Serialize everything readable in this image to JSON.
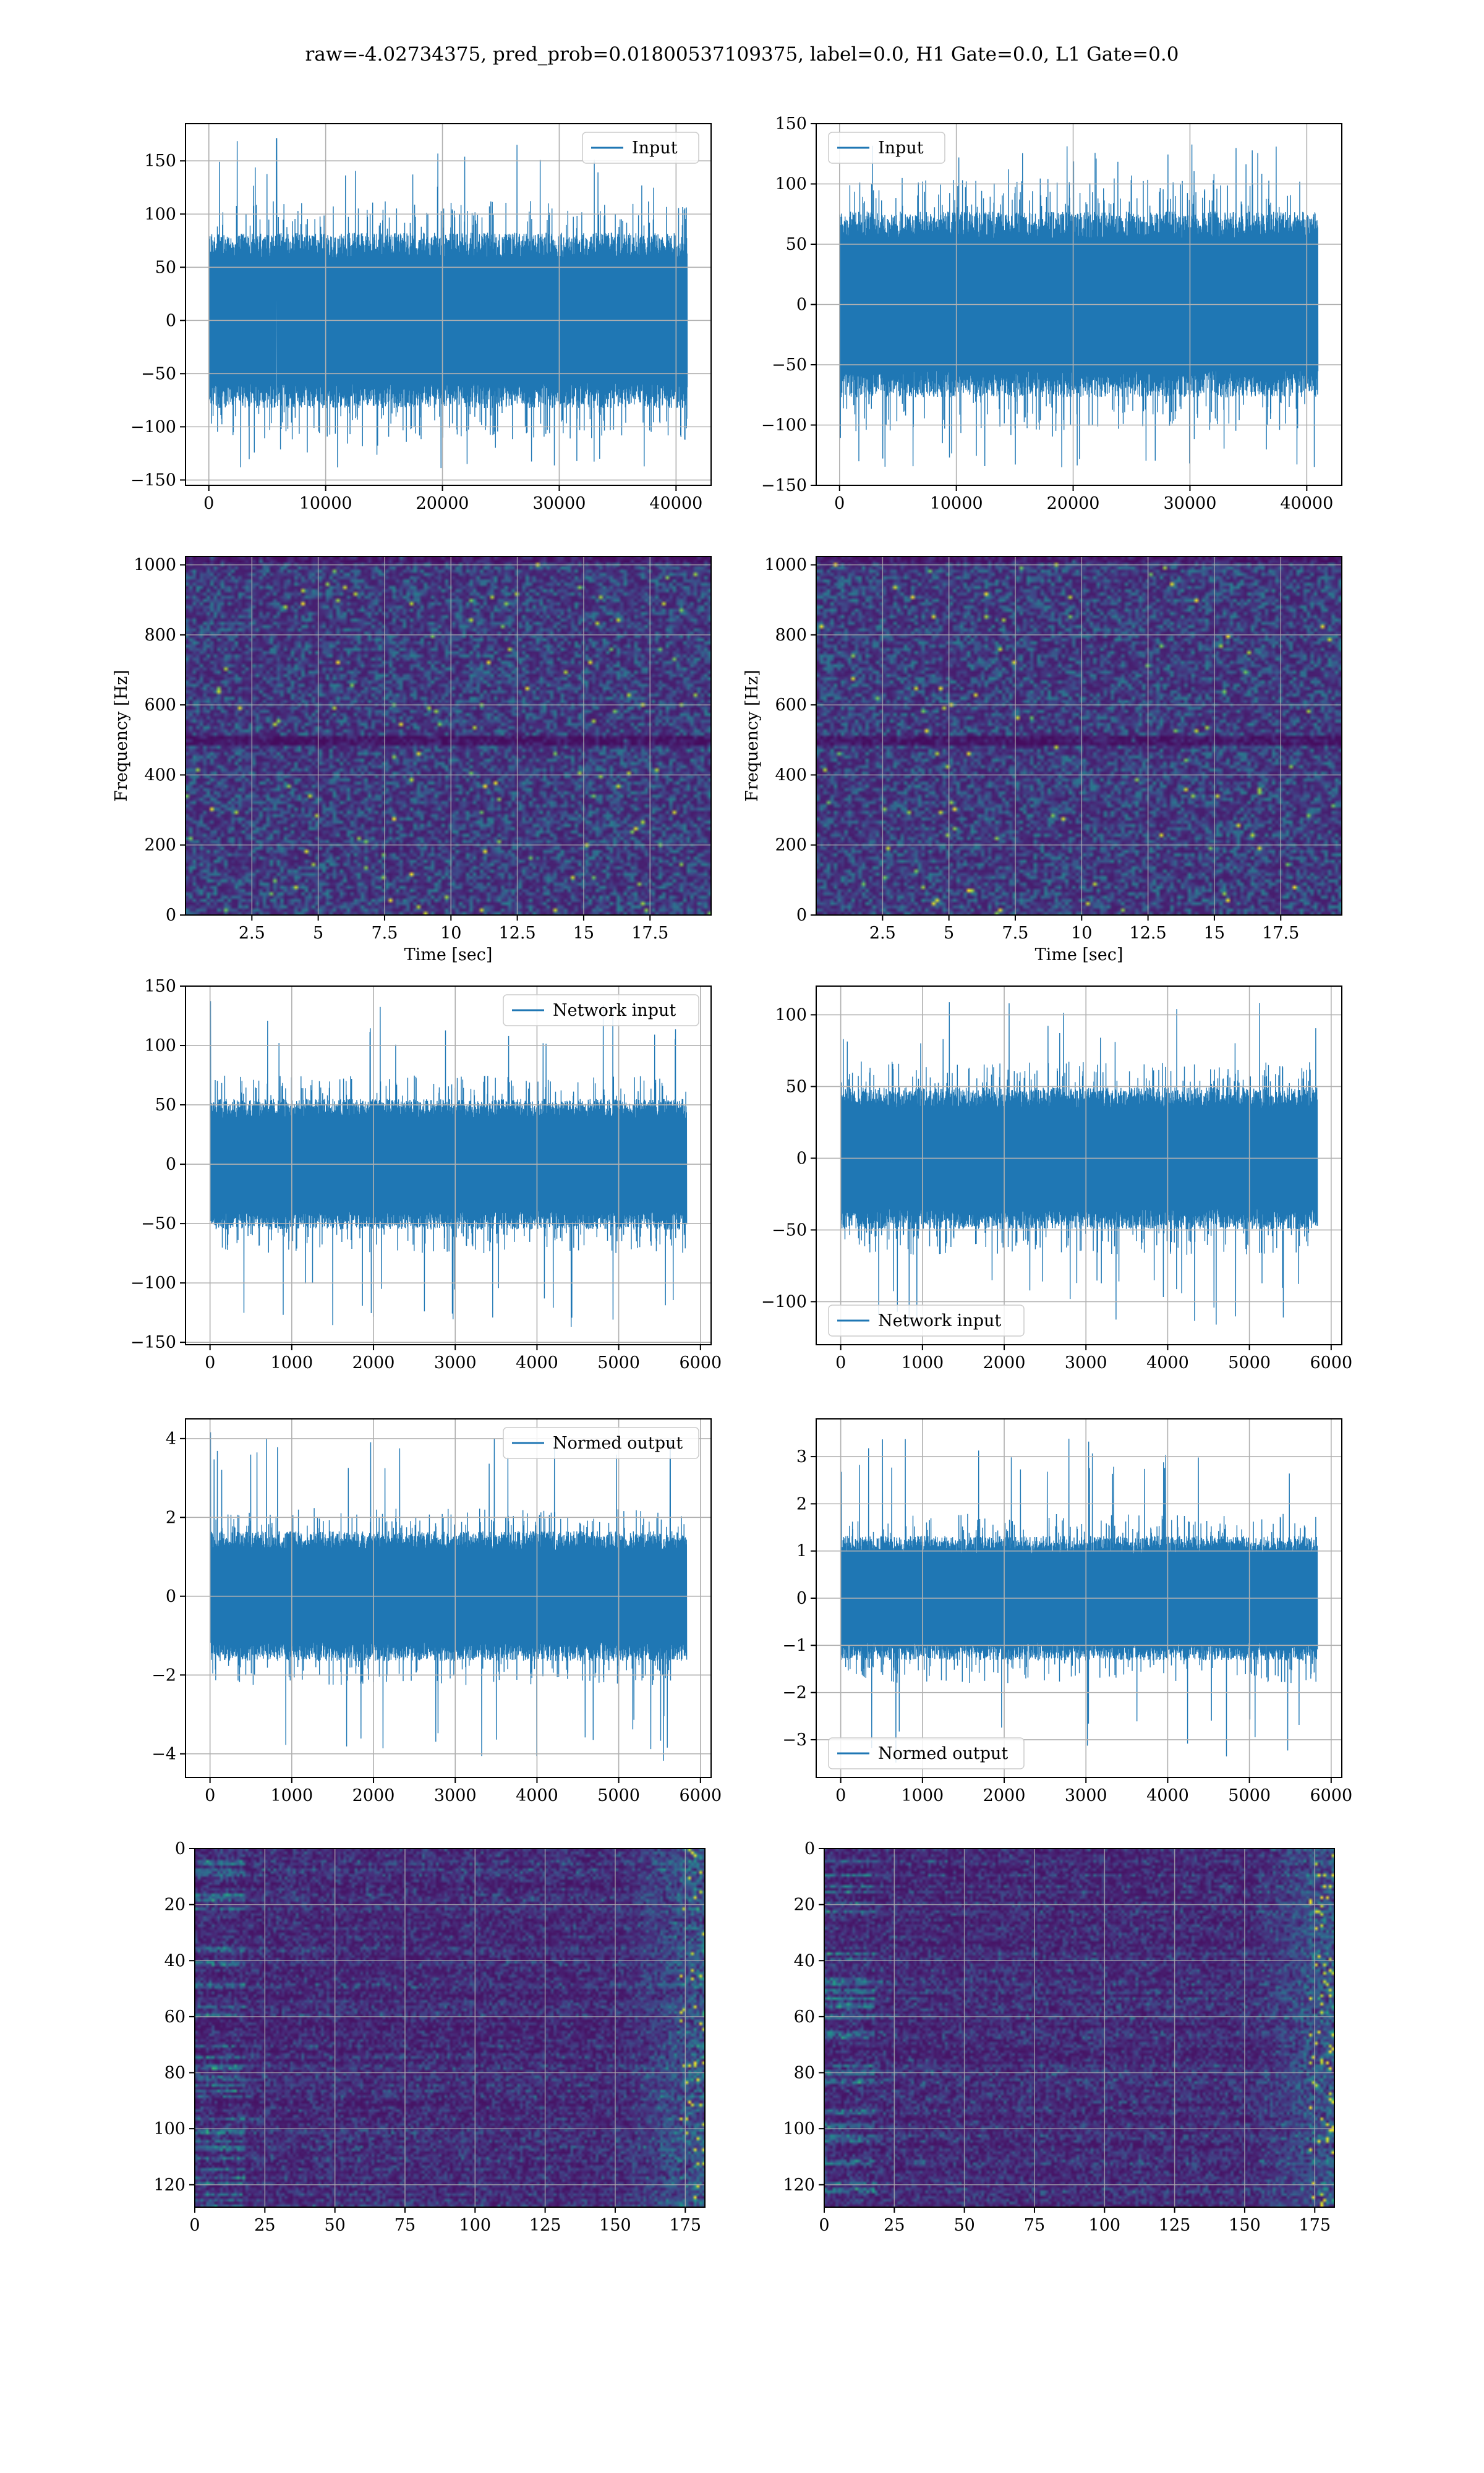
{
  "suptitle": "raw=-4.02734375, pred_prob=0.01800537109375, label=0.0, H1 Gate=0.0, L1 Gate=0.0",
  "colors": {
    "line": "#1f77b4",
    "viridis_low": "#440154",
    "viridis_high": "#fde725",
    "grid": "#b0b0b0"
  },
  "chart_data": [
    {
      "id": "input-h1",
      "type": "line",
      "legend": "Input",
      "legend_loc": "upper right",
      "xlim": [
        -2000,
        43000
      ],
      "ylim": [
        -155,
        185
      ],
      "xticks": [
        0,
        10000,
        20000,
        30000,
        40000
      ],
      "yticks": [
        -150,
        -100,
        -50,
        0,
        50,
        100,
        150
      ],
      "n_samples": 40960,
      "core_amplitude": 75,
      "max": 171,
      "min": -140,
      "spike_at": 5800
    },
    {
      "id": "input-l1",
      "type": "line",
      "legend": "Input",
      "legend_loc": "upper left",
      "xlim": [
        -2000,
        43000
      ],
      "ylim": [
        -150,
        150
      ],
      "xticks": [
        0,
        10000,
        20000,
        30000,
        40000
      ],
      "yticks": [
        -150,
        -100,
        -50,
        0,
        50,
        100,
        150
      ],
      "n_samples": 40960,
      "core_amplitude": 70,
      "max": 136,
      "min": -136
    },
    {
      "id": "spec-h1",
      "type": "heatmap",
      "kind": "spectrogram",
      "xlim": [
        0,
        19.8
      ],
      "ylim": [
        0,
        1024
      ],
      "xticks": [
        2.5,
        5.0,
        7.5,
        10.0,
        12.5,
        15.0,
        17.5
      ],
      "yticks": [
        0,
        200,
        400,
        600,
        800,
        1000
      ],
      "xlabel": "Time [sec]",
      "ylabel": "Frequency [Hz]",
      "dark_band_hz": 500
    },
    {
      "id": "spec-l1",
      "type": "heatmap",
      "kind": "spectrogram",
      "xlim": [
        0,
        19.8
      ],
      "ylim": [
        0,
        1024
      ],
      "xticks": [
        2.5,
        5.0,
        7.5,
        10.0,
        12.5,
        15.0,
        17.5
      ],
      "yticks": [
        0,
        200,
        400,
        600,
        800,
        1000
      ],
      "xlabel": "Time [sec]",
      "ylabel": "Frequency [Hz]",
      "dark_band_hz": 500
    },
    {
      "id": "net-h1",
      "type": "line",
      "legend": "Network input",
      "legend_loc": "upper right",
      "xlim": [
        -300,
        6130
      ],
      "ylim": [
        -152,
        150
      ],
      "xticks": [
        0,
        1000,
        2000,
        3000,
        4000,
        5000,
        6000
      ],
      "yticks": [
        -150,
        -100,
        -50,
        0,
        50,
        100,
        150
      ],
      "n_samples": 5832,
      "core_amplitude": 50,
      "max": 137,
      "min": -137,
      "spike_at": 5
    },
    {
      "id": "net-l1",
      "type": "line",
      "legend": "Network input",
      "legend_loc": "lower left",
      "xlim": [
        -300,
        6130
      ],
      "ylim": [
        -130,
        120
      ],
      "xticks": [
        0,
        1000,
        2000,
        3000,
        4000,
        5000,
        6000
      ],
      "yticks": [
        -100,
        -50,
        0,
        50,
        100
      ],
      "n_samples": 5832,
      "core_amplitude": 45,
      "max": 110,
      "min": -118
    },
    {
      "id": "norm-h1",
      "type": "line",
      "legend": "Normed output",
      "legend_loc": "upper right",
      "xlim": [
        -300,
        6130
      ],
      "ylim": [
        -4.6,
        4.5
      ],
      "xticks": [
        0,
        1000,
        2000,
        3000,
        4000,
        5000,
        6000
      ],
      "yticks": [
        -4,
        -2,
        0,
        2,
        4
      ],
      "n_samples": 5832,
      "core_amplitude": 1.5,
      "max": 4.15,
      "min": -4.2,
      "spike_at": 5
    },
    {
      "id": "norm-l1",
      "type": "line",
      "legend": "Normed output",
      "legend_loc": "lower left",
      "xlim": [
        -300,
        6130
      ],
      "ylim": [
        -3.8,
        3.8
      ],
      "xticks": [
        0,
        1000,
        2000,
        3000,
        4000,
        5000,
        6000
      ],
      "yticks": [
        -3,
        -2,
        -1,
        0,
        1,
        2,
        3
      ],
      "n_samples": 5832,
      "core_amplitude": 1.2,
      "max": 3.4,
      "min": -3.5
    },
    {
      "id": "feat-h1",
      "type": "heatmap",
      "kind": "feature-map",
      "xlim": [
        0,
        182
      ],
      "ylim": [
        128,
        0
      ],
      "xticks": [
        0,
        25,
        50,
        75,
        100,
        125,
        150,
        175
      ],
      "yticks": [
        0,
        20,
        40,
        60,
        80,
        100,
        120
      ],
      "bright_columns": "right-edge"
    },
    {
      "id": "feat-l1",
      "type": "heatmap",
      "kind": "feature-map",
      "xlim": [
        0,
        182
      ],
      "ylim": [
        128,
        0
      ],
      "xticks": [
        0,
        25,
        50,
        75,
        100,
        125,
        150,
        175
      ],
      "yticks": [
        0,
        20,
        40,
        60,
        80,
        100,
        120
      ],
      "bright_columns": "right-edge"
    }
  ]
}
